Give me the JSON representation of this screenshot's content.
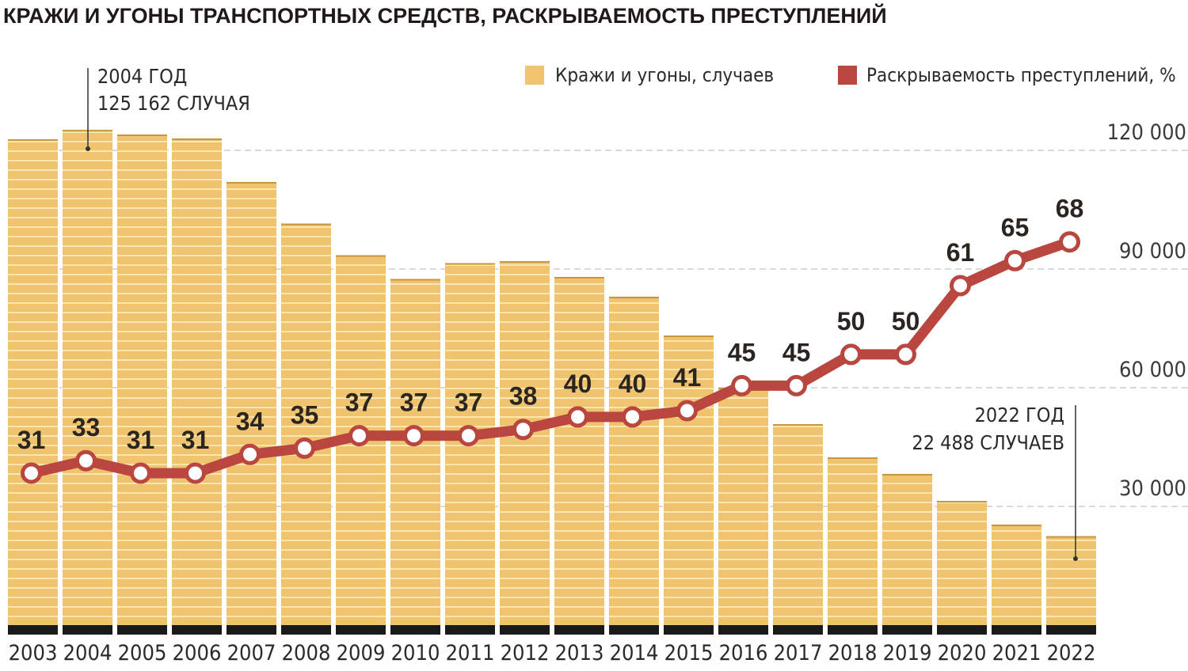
{
  "title": "КРАЖИ И УГОНЫ ТРАНСПОРТНЫХ СРЕДСТВ, РАСКРЫВАЕМОСТЬ ПРЕСТУПЛЕНИЙ",
  "colors": {
    "bar": "#f0c46e",
    "bar_stripe": "#fde6b0",
    "line": "#b9463f",
    "base": "#1a1a1a",
    "grid": "#b5b5b5"
  },
  "legend": {
    "bars_label": "Кражи и угоны, случаев",
    "line_label": "Раскрываемость преступлений, %",
    "position": "top-right"
  },
  "annotations": {
    "first": {
      "line1": "2004 ГОД",
      "line2": "125 162 СЛУЧАЯ"
    },
    "last": {
      "line1": "2022 ГОД",
      "line2": "22 488 СЛУЧАЕВ"
    }
  },
  "chart_data": {
    "type": "bar+line",
    "categories": [
      "2003",
      "2004",
      "2005",
      "2006",
      "2007",
      "2008",
      "2009",
      "2010",
      "2011",
      "2012",
      "2013",
      "2014",
      "2015",
      "2016",
      "2017",
      "2018",
      "2019",
      "2020",
      "2021",
      "2022"
    ],
    "series": [
      {
        "name": "Кражи и угоны, случаев",
        "type": "bar",
        "axis": "right",
        "values": [
          122800,
          125162,
          124000,
          123000,
          112000,
          101500,
          93500,
          87500,
          91500,
          92000,
          88000,
          83000,
          73200,
          60000,
          50800,
          42400,
          38200,
          31400,
          25400,
          22488
        ]
      },
      {
        "name": "Раскрываемость преступлений, %",
        "type": "line",
        "axis": "secondary",
        "values": [
          31,
          33,
          31,
          31,
          34,
          35,
          37,
          37,
          37,
          38,
          40,
          40,
          41,
          45,
          45,
          50,
          50,
          61,
          65,
          68
        ]
      }
    ],
    "y_axis": {
      "ticks": [
        30000,
        60000,
        90000,
        120000
      ],
      "tick_labels": [
        "30 000",
        "60 000",
        "90 000",
        "120 000"
      ],
      "range": [
        0,
        125162
      ]
    },
    "grid": true
  }
}
